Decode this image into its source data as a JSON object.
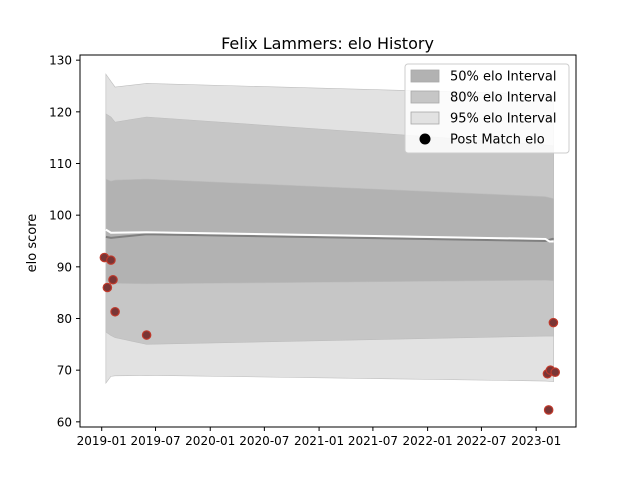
{
  "chart_data": {
    "type": "line",
    "title": "Felix Lammers: elo History",
    "xlabel": "",
    "ylabel": "elo score",
    "x_ticks": [
      "2019-01",
      "2019-07",
      "2020-01",
      "2020-07",
      "2021-01",
      "2021-07",
      "2022-01",
      "2022-07",
      "2023-01"
    ],
    "y_ticks": [
      60,
      70,
      80,
      90,
      100,
      110,
      120,
      130
    ],
    "xlim": [
      "2018-10-20",
      "2023-05-15"
    ],
    "ylim": [
      59,
      131
    ],
    "legend_position": "top-right",
    "legend": [
      {
        "label": "50% elo Interval",
        "kind": "band",
        "color": "#b2b2b2"
      },
      {
        "label": "80% elo Interval",
        "kind": "band",
        "color": "#c6c6c6"
      },
      {
        "label": "95% elo Interval",
        "kind": "band",
        "color": "#e2e2e2"
      },
      {
        "label": "Post Match elo",
        "kind": "marker",
        "color": "#000000"
      }
    ],
    "series": [
      {
        "name": "95% elo Interval",
        "kind": "band",
        "color": "#e2e2e2",
        "x": [
          "2019-01-15",
          "2019-02-01",
          "2019-02-15",
          "2019-06-01",
          "2023-02-01",
          "2023-03-01"
        ],
        "lower": [
          67.5,
          68.8,
          68.9,
          69.0,
          67.9,
          67.8
        ],
        "upper": [
          127.3,
          125.9,
          124.8,
          125.5,
          123.4,
          123.0
        ]
      },
      {
        "name": "80% elo Interval",
        "kind": "band",
        "color": "#c6c6c6",
        "x": [
          "2019-01-15",
          "2019-02-01",
          "2019-02-15",
          "2019-06-01",
          "2023-02-01",
          "2023-03-01"
        ],
        "lower": [
          77.4,
          76.7,
          76.3,
          75.0,
          76.6,
          76.6
        ],
        "upper": [
          119.6,
          119.0,
          118.0,
          119.0,
          113.6,
          113.4
        ]
      },
      {
        "name": "50% elo Interval",
        "kind": "band",
        "color": "#b2b2b2",
        "x": [
          "2019-01-15",
          "2019-02-01",
          "2019-02-15",
          "2019-06-01",
          "2023-02-01",
          "2023-03-01"
        ],
        "lower": [
          87.3,
          86.8,
          86.8,
          86.7,
          87.4,
          87.3
        ],
        "upper": [
          107.0,
          106.6,
          106.8,
          107.0,
          103.6,
          103.2
        ]
      },
      {
        "name": "Mean elo",
        "kind": "line",
        "color": "#808080",
        "x": [
          "2019-01-15",
          "2019-02-01",
          "2019-06-01",
          "2023-02-01",
          "2023-02-25",
          "2023-03-01"
        ],
        "y": [
          95.8,
          95.6,
          96.3,
          95.0,
          95.4,
          95.4
        ]
      },
      {
        "name": "Upper edge line",
        "kind": "line",
        "color": "#ffffff",
        "x": [
          "2019-01-15",
          "2019-02-01",
          "2019-06-01",
          "2023-02-01",
          "2023-02-15",
          "2023-03-01"
        ],
        "y": [
          97.2,
          96.6,
          96.7,
          95.4,
          94.9,
          94.9
        ]
      },
      {
        "name": "Post Match elo",
        "kind": "scatter",
        "color": "#7a3535",
        "edge": "#c0392b",
        "x": [
          "2019-01-10",
          "2019-01-20",
          "2019-02-01",
          "2019-02-08",
          "2019-02-15",
          "2019-06-01",
          "2023-02-08",
          "2023-02-12",
          "2023-02-18",
          "2023-02-28",
          "2023-03-06"
        ],
        "y": [
          91.8,
          86.0,
          91.3,
          87.5,
          81.3,
          76.8,
          69.3,
          62.3,
          70.0,
          79.2,
          69.6
        ]
      }
    ]
  }
}
